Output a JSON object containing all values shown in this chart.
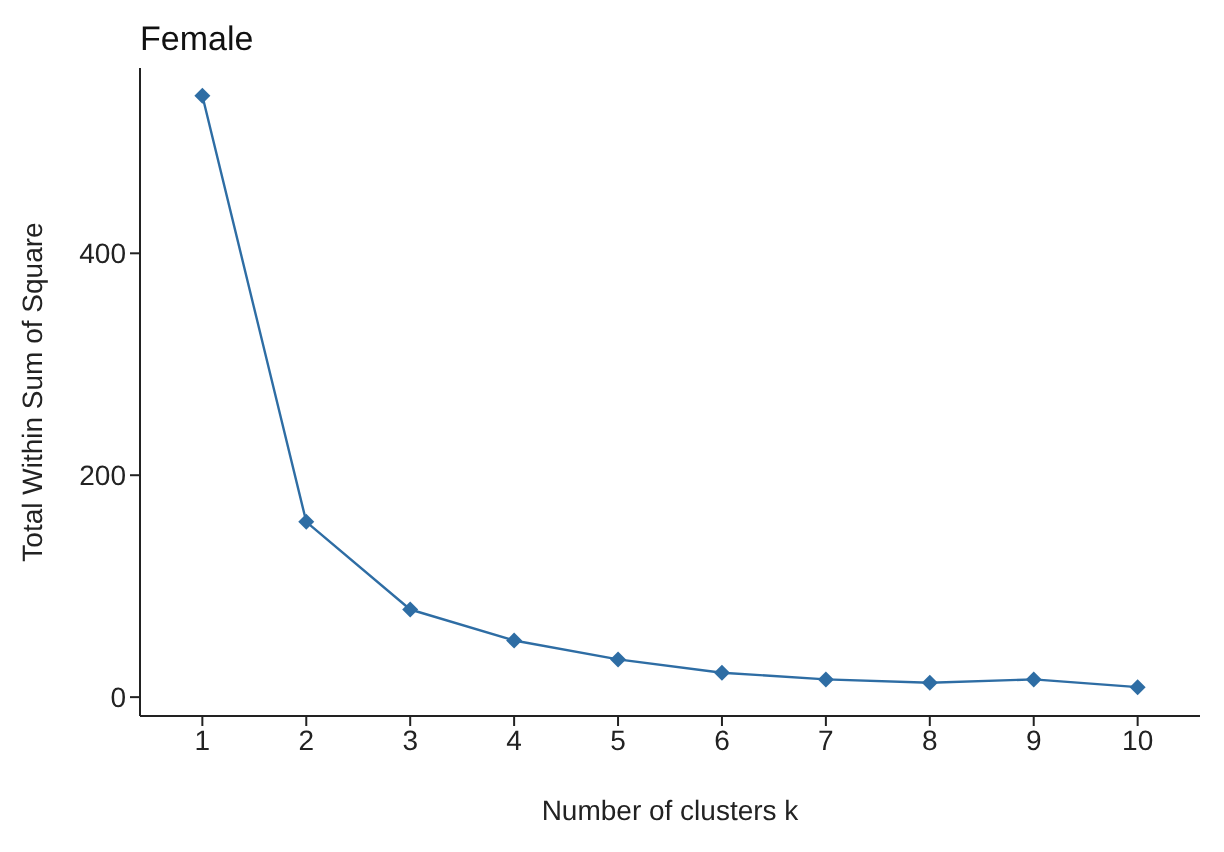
{
  "chart_data": {
    "type": "line",
    "title": "Female",
    "xlabel": "Number of clusters k",
    "ylabel": "Total Within Sum of Square",
    "x": [
      1,
      2,
      3,
      4,
      5,
      6,
      7,
      8,
      9,
      10
    ],
    "series": [
      {
        "color": "#2e6da4",
        "values": [
          542,
          158,
          79,
          51,
          34,
          22,
          16,
          13,
          16,
          9
        ]
      }
    ],
    "xlim": [
      0.4,
      10.6
    ],
    "xticks": [
      1,
      2,
      3,
      4,
      5,
      6,
      7,
      8,
      9,
      10
    ],
    "ylim": [
      -17,
      567
    ],
    "yticks": [
      0,
      200,
      400
    ],
    "grid": false,
    "legend": false,
    "marker": "diamond",
    "line_style": "solid"
  }
}
